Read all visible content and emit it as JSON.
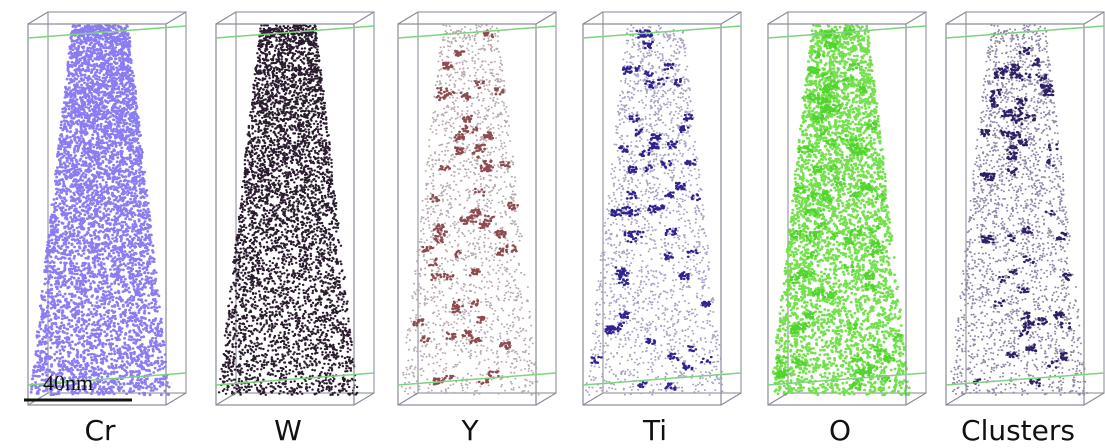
{
  "panels": [
    {
      "label": "Cr"
    },
    {
      "label": "W"
    },
    {
      "label": "Y"
    },
    {
      "label": "Ti"
    },
    {
      "label": "O"
    },
    {
      "label": "Clusters"
    }
  ],
  "scale_bar": {
    "label": "40nm"
  }
}
